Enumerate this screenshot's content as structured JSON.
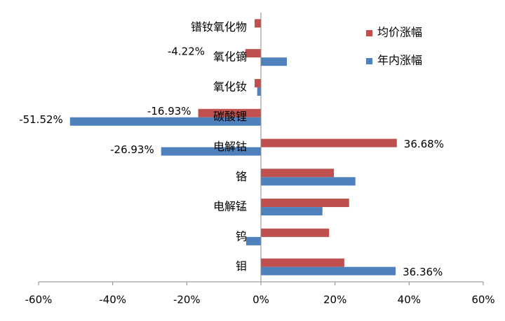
{
  "chart_data": {
    "type": "barh",
    "categories": [
      "镨钕氧化物",
      "氧化镝",
      "氧化钕",
      "碳酸锂",
      "电解钴",
      "铬",
      "电解锰",
      "钨",
      "钼"
    ],
    "series": [
      {
        "name": "均价涨幅",
        "color": "#c0504d",
        "values": [
          -1.7,
          -4.22,
          -1.7,
          -16.93,
          36.68,
          19.7,
          23.8,
          18.4,
          22.5
        ],
        "value_labels": [
          null,
          "-4.22%",
          null,
          "-16.93%",
          "36.68%",
          null,
          null,
          null,
          null
        ]
      },
      {
        "name": "年内涨幅",
        "color": "#4f81bd",
        "values": [
          null,
          7.0,
          -1.0,
          -51.52,
          -26.93,
          25.5,
          16.6,
          -4.0,
          36.36
        ],
        "value_labels": [
          null,
          null,
          null,
          "-51.52%",
          "-26.93%",
          null,
          null,
          null,
          "36.36%"
        ]
      }
    ],
    "xlim": [
      -60,
      60
    ],
    "xticks": [
      {
        "value": -60,
        "label": "-60%"
      },
      {
        "value": -40,
        "label": "-40%"
      },
      {
        "value": -20,
        "label": "-20%"
      },
      {
        "value": 0,
        "label": "0%"
      },
      {
        "value": 20,
        "label": "20%"
      },
      {
        "value": 40,
        "label": "40%"
      },
      {
        "value": 60,
        "label": "60%"
      }
    ],
    "legend": "upper right"
  }
}
